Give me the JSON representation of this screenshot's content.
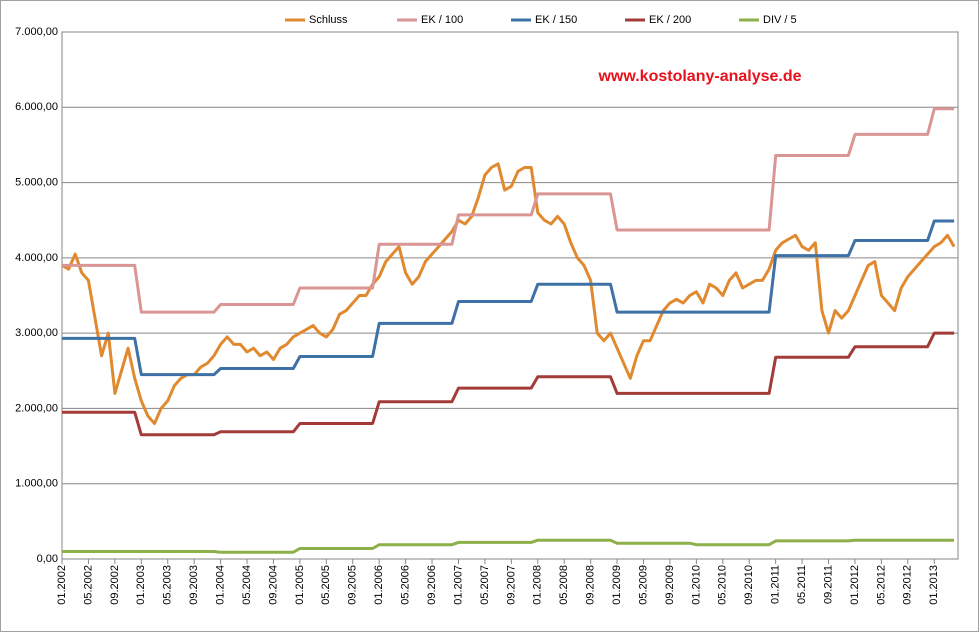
{
  "chart_data": {
    "type": "line",
    "annotation": "www.kostolany-analyse.de",
    "categories": [
      "01.2002",
      null,
      null,
      null,
      "05.2002",
      null,
      null,
      null,
      "09.2002",
      null,
      null,
      null,
      "01.2003",
      null,
      null,
      null,
      "05.2003",
      null,
      null,
      null,
      "09.2003",
      null,
      null,
      null,
      "01.2004",
      null,
      null,
      null,
      "05.2004",
      null,
      null,
      null,
      "09.2004",
      null,
      null,
      null,
      "01.2005",
      null,
      null,
      null,
      "05.2005",
      null,
      null,
      null,
      "09.2005",
      null,
      null,
      null,
      "01.2006",
      null,
      null,
      null,
      "05.2006",
      null,
      null,
      null,
      "09.2006",
      null,
      null,
      null,
      "01.2007",
      null,
      null,
      null,
      "05.2007",
      null,
      null,
      null,
      "09.2007",
      null,
      null,
      null,
      "01.2008",
      null,
      null,
      null,
      "05.2008",
      null,
      null,
      null,
      "09.2008",
      null,
      null,
      null,
      "01.2009",
      null,
      null,
      null,
      "05.2009",
      null,
      null,
      null,
      "09.2009",
      null,
      null,
      null,
      "01.2010",
      null,
      null,
      null,
      "05.2010",
      null,
      null,
      null,
      "09.2010",
      null,
      null,
      null,
      "01.2011",
      null,
      null,
      null,
      "05.2011",
      null,
      null,
      null,
      "09.2011",
      null,
      null,
      null,
      "01.2012",
      null,
      null,
      null,
      "05.2012",
      null,
      null,
      null,
      "09.2012",
      null,
      null,
      null,
      "01.2013",
      null,
      null,
      null
    ],
    "ylim": [
      0,
      7000
    ],
    "yticks": [
      {
        "value": 0,
        "label": "0,00"
      },
      {
        "value": 1000,
        "label": "1.000,00"
      },
      {
        "value": 2000,
        "label": "2.000,00"
      },
      {
        "value": 3000,
        "label": "3.000,00"
      },
      {
        "value": 4000,
        "label": "4.000,00"
      },
      {
        "value": 5000,
        "label": "5.000,00"
      },
      {
        "value": 6000,
        "label": "6.000,00"
      },
      {
        "value": 7000,
        "label": "7.000,00"
      }
    ],
    "grid": true,
    "legend": "top",
    "series": [
      {
        "name": "Schluss",
        "color": "#e0892f",
        "values": [
          3900,
          3850,
          4050,
          3800,
          3700,
          3200,
          2700,
          3000,
          2200,
          2500,
          2800,
          2400,
          2100,
          1900,
          1800,
          2000,
          2100,
          2300,
          2400,
          2450,
          2450,
          2550,
          2600,
          2700,
          2850,
          2950,
          2850,
          2850,
          2750,
          2800,
          2700,
          2750,
          2650,
          2800,
          2850,
          2950,
          3000,
          3050,
          3100,
          3000,
          2950,
          3050,
          3250,
          3300,
          3400,
          3500,
          3500,
          3650,
          3750,
          3950,
          4050,
          4150,
          3800,
          3650,
          3750,
          3950,
          4050,
          4150,
          4250,
          4350,
          4500,
          4450,
          4550,
          4800,
          5100,
          5200,
          5250,
          4900,
          4950,
          5150,
          5200,
          5200,
          4600,
          4500,
          4450,
          4550,
          4450,
          4200,
          4000,
          3900,
          3700,
          3000,
          2900,
          3000,
          2800,
          2600,
          2400,
          2700,
          2900,
          2900,
          3100,
          3300,
          3400,
          3450,
          3400,
          3500,
          3550,
          3400,
          3650,
          3600,
          3500,
          3700,
          3800,
          3600,
          3650,
          3700,
          3700,
          3850,
          4100,
          4200,
          4250,
          4300,
          4150,
          4100,
          4200,
          3300,
          3000,
          3300,
          3200,
          3300,
          3500,
          3700,
          3900,
          3950,
          3500,
          3400,
          3300,
          3600,
          3750,
          3850,
          3950,
          4050,
          4150,
          4200,
          4300,
          4150
        ]
      },
      {
        "name": "EK / 100",
        "color": "#d99694",
        "values": [
          3900,
          3900,
          3900,
          3900,
          3900,
          3900,
          3900,
          3900,
          3900,
          3900,
          3900,
          3900,
          3280,
          3280,
          3280,
          3280,
          3280,
          3280,
          3280,
          3280,
          3280,
          3280,
          3280,
          3280,
          3380,
          3380,
          3380,
          3380,
          3380,
          3380,
          3380,
          3380,
          3380,
          3380,
          3380,
          3380,
          3600,
          3600,
          3600,
          3600,
          3600,
          3600,
          3600,
          3600,
          3600,
          3600,
          3600,
          3600,
          4180,
          4180,
          4180,
          4180,
          4180,
          4180,
          4180,
          4180,
          4180,
          4180,
          4180,
          4180,
          4570,
          4570,
          4570,
          4570,
          4570,
          4570,
          4570,
          4570,
          4570,
          4570,
          4570,
          4570,
          4850,
          4850,
          4850,
          4850,
          4850,
          4850,
          4850,
          4850,
          4850,
          4850,
          4850,
          4850,
          4370,
          4370,
          4370,
          4370,
          4370,
          4370,
          4370,
          4370,
          4370,
          4370,
          4370,
          4370,
          4370,
          4370,
          4370,
          4370,
          4370,
          4370,
          4370,
          4370,
          4370,
          4370,
          4370,
          4370,
          5360,
          5360,
          5360,
          5360,
          5360,
          5360,
          5360,
          5360,
          5360,
          5360,
          5360,
          5360,
          5640,
          5640,
          5640,
          5640,
          5640,
          5640,
          5640,
          5640,
          5640,
          5640,
          5640,
          5640,
          5980,
          5980,
          5980,
          5980
        ]
      },
      {
        "name": "EK / 150",
        "color": "#3e71a6",
        "values": [
          2930,
          2930,
          2930,
          2930,
          2930,
          2930,
          2930,
          2930,
          2930,
          2930,
          2930,
          2930,
          2450,
          2450,
          2450,
          2450,
          2450,
          2450,
          2450,
          2450,
          2450,
          2450,
          2450,
          2450,
          2530,
          2530,
          2530,
          2530,
          2530,
          2530,
          2530,
          2530,
          2530,
          2530,
          2530,
          2530,
          2690,
          2690,
          2690,
          2690,
          2690,
          2690,
          2690,
          2690,
          2690,
          2690,
          2690,
          2690,
          3130,
          3130,
          3130,
          3130,
          3130,
          3130,
          3130,
          3130,
          3130,
          3130,
          3130,
          3130,
          3420,
          3420,
          3420,
          3420,
          3420,
          3420,
          3420,
          3420,
          3420,
          3420,
          3420,
          3420,
          3650,
          3650,
          3650,
          3650,
          3650,
          3650,
          3650,
          3650,
          3650,
          3650,
          3650,
          3650,
          3280,
          3280,
          3280,
          3280,
          3280,
          3280,
          3280,
          3280,
          3280,
          3280,
          3280,
          3280,
          3280,
          3280,
          3280,
          3280,
          3280,
          3280,
          3280,
          3280,
          3280,
          3280,
          3280,
          3280,
          4030,
          4030,
          4030,
          4030,
          4030,
          4030,
          4030,
          4030,
          4030,
          4030,
          4030,
          4030,
          4230,
          4230,
          4230,
          4230,
          4230,
          4230,
          4230,
          4230,
          4230,
          4230,
          4230,
          4230,
          4490,
          4490,
          4490,
          4490
        ]
      },
      {
        "name": "EK / 200",
        "color": "#a33c39",
        "values": [
          1950,
          1950,
          1950,
          1950,
          1950,
          1950,
          1950,
          1950,
          1950,
          1950,
          1950,
          1950,
          1650,
          1650,
          1650,
          1650,
          1650,
          1650,
          1650,
          1650,
          1650,
          1650,
          1650,
          1650,
          1690,
          1690,
          1690,
          1690,
          1690,
          1690,
          1690,
          1690,
          1690,
          1690,
          1690,
          1690,
          1800,
          1800,
          1800,
          1800,
          1800,
          1800,
          1800,
          1800,
          1800,
          1800,
          1800,
          1800,
          2090,
          2090,
          2090,
          2090,
          2090,
          2090,
          2090,
          2090,
          2090,
          2090,
          2090,
          2090,
          2270,
          2270,
          2270,
          2270,
          2270,
          2270,
          2270,
          2270,
          2270,
          2270,
          2270,
          2270,
          2420,
          2420,
          2420,
          2420,
          2420,
          2420,
          2420,
          2420,
          2420,
          2420,
          2420,
          2420,
          2200,
          2200,
          2200,
          2200,
          2200,
          2200,
          2200,
          2200,
          2200,
          2200,
          2200,
          2200,
          2200,
          2200,
          2200,
          2200,
          2200,
          2200,
          2200,
          2200,
          2200,
          2200,
          2200,
          2200,
          2680,
          2680,
          2680,
          2680,
          2680,
          2680,
          2680,
          2680,
          2680,
          2680,
          2680,
          2680,
          2820,
          2820,
          2820,
          2820,
          2820,
          2820,
          2820,
          2820,
          2820,
          2820,
          2820,
          2820,
          3000,
          3000,
          3000,
          3000
        ]
      },
      {
        "name": "DIV / 5",
        "color": "#8db04a",
        "values": [
          100,
          100,
          100,
          100,
          100,
          100,
          100,
          100,
          100,
          100,
          100,
          100,
          100,
          100,
          100,
          100,
          100,
          100,
          100,
          100,
          100,
          100,
          100,
          100,
          90,
          90,
          90,
          90,
          90,
          90,
          90,
          90,
          90,
          90,
          90,
          90,
          140,
          140,
          140,
          140,
          140,
          140,
          140,
          140,
          140,
          140,
          140,
          140,
          190,
          190,
          190,
          190,
          190,
          190,
          190,
          190,
          190,
          190,
          190,
          190,
          220,
          220,
          220,
          220,
          220,
          220,
          220,
          220,
          220,
          220,
          220,
          220,
          250,
          250,
          250,
          250,
          250,
          250,
          250,
          250,
          250,
          250,
          250,
          250,
          210,
          210,
          210,
          210,
          210,
          210,
          210,
          210,
          210,
          210,
          210,
          210,
          190,
          190,
          190,
          190,
          190,
          190,
          190,
          190,
          190,
          190,
          190,
          190,
          240,
          240,
          240,
          240,
          240,
          240,
          240,
          240,
          240,
          240,
          240,
          240,
          250,
          250,
          250,
          250,
          250,
          250,
          250,
          250,
          250,
          250,
          250,
          250,
          250,
          250,
          250,
          250
        ]
      }
    ]
  }
}
